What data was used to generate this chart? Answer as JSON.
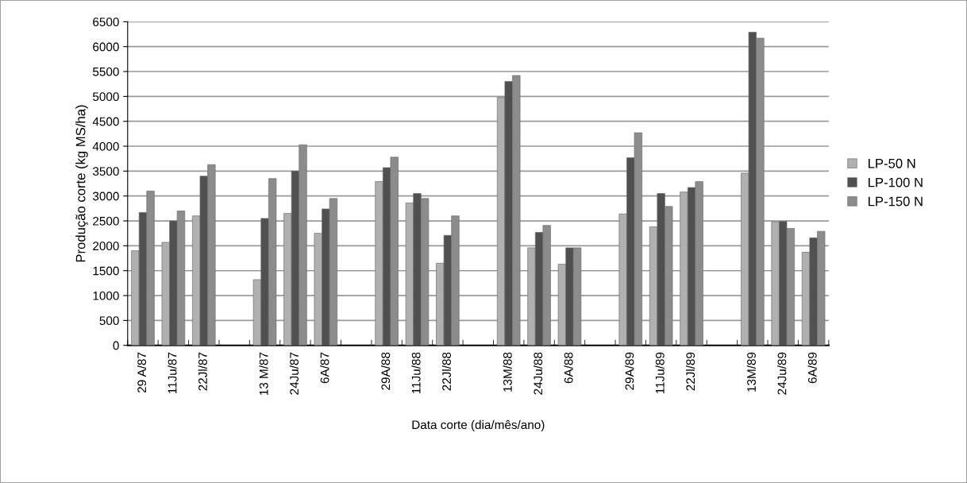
{
  "chart_data": {
    "type": "bar",
    "xlabel": "Data corte (dia/mês/ano)",
    "ylabel": "Produção corte (kg MS/ha)",
    "categories": [
      "29 A/87",
      "11Ju/87",
      "22Jl/87",
      null,
      "13 M/87",
      "24Ju/87",
      "6A/87",
      null,
      "29A/88",
      "11Ju/88",
      "22Jl/88",
      null,
      "13M/88",
      "24Ju/88",
      "6A/88",
      null,
      "29A/89",
      "11Ju/89",
      "22Jl/89",
      null,
      "13M/89",
      "24Ju/89",
      "6A/89"
    ],
    "series": [
      {
        "name": "LP-50 N",
        "color": "#b0b0b0",
        "values": [
          1900,
          2070,
          2600,
          null,
          1320,
          2650,
          2250,
          null,
          3290,
          2860,
          1650,
          null,
          4980,
          1960,
          1630,
          null,
          2640,
          2380,
          3080,
          null,
          3460,
          2480,
          1870
        ]
      },
      {
        "name": "LP-100 N",
        "color": "#505050",
        "values": [
          2670,
          2500,
          3400,
          null,
          2550,
          3500,
          2740,
          null,
          3570,
          3050,
          2210,
          null,
          5300,
          2270,
          1960,
          null,
          3770,
          3050,
          3170,
          null,
          6290,
          2490,
          2160
        ]
      },
      {
        "name": "LP-150 N",
        "color": "#8c8c8c",
        "values": [
          3100,
          2700,
          3630,
          null,
          3350,
          4030,
          2950,
          null,
          3780,
          2950,
          2600,
          null,
          5420,
          2410,
          1960,
          null,
          4270,
          2790,
          3290,
          null,
          6170,
          2350,
          2290
        ]
      }
    ],
    "ylim": [
      0,
      6500
    ],
    "yticks": [
      0,
      500,
      1000,
      1500,
      2000,
      2500,
      3000,
      3500,
      4000,
      4500,
      5000,
      5500,
      6000,
      6500
    ],
    "grid": "y",
    "legend": "right"
  }
}
